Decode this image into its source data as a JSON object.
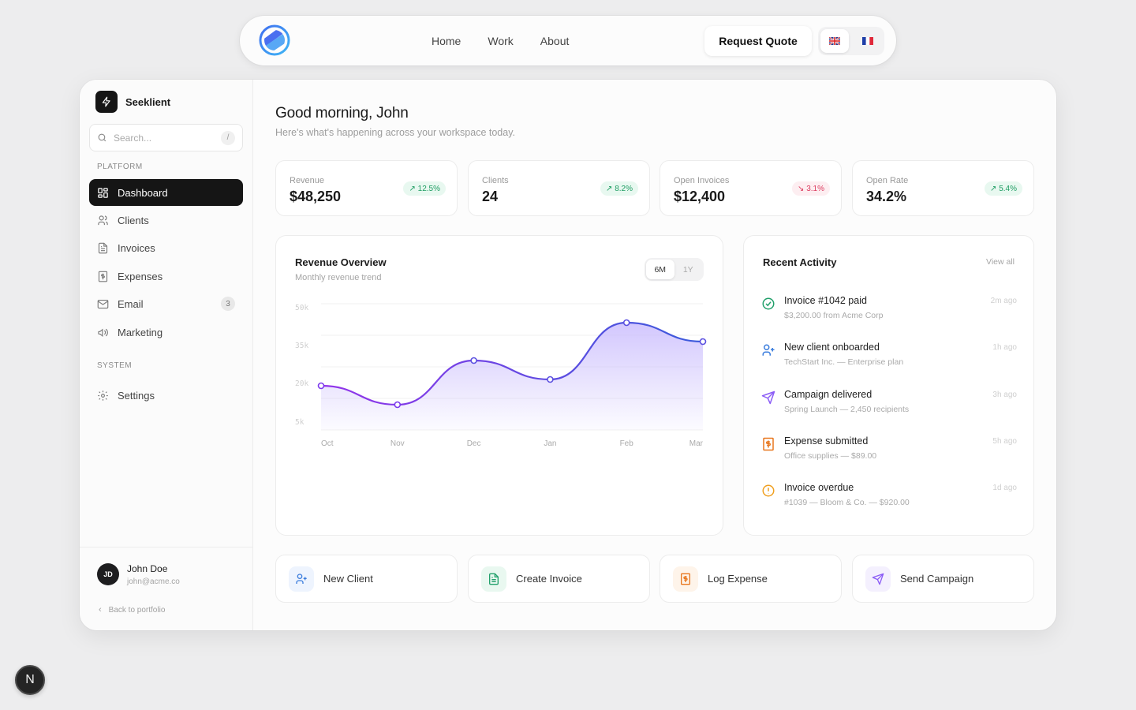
{
  "topnav": {
    "links": [
      "Home",
      "Work",
      "About"
    ],
    "cta_label": "Request Quote",
    "languages": [
      {
        "code": "en",
        "flag": "🇬🇧",
        "active": true
      },
      {
        "code": "fr",
        "flag": "🇫🇷",
        "active": false
      }
    ]
  },
  "sidebar": {
    "brand": "Seeklient",
    "search_placeholder": "Search...",
    "search_shortcut": "/",
    "sections": {
      "platform": "PLATFORM",
      "system": "SYSTEM"
    },
    "items": [
      {
        "label": "Dashboard",
        "icon": "dashboard-icon",
        "active": true
      },
      {
        "label": "Clients",
        "icon": "users-icon"
      },
      {
        "label": "Invoices",
        "icon": "file-text-icon"
      },
      {
        "label": "Expenses",
        "icon": "receipt-icon"
      },
      {
        "label": "Email",
        "icon": "mail-icon",
        "badge": "3"
      },
      {
        "label": "Marketing",
        "icon": "megaphone-icon"
      },
      {
        "label": "Settings",
        "icon": "settings-icon"
      }
    ],
    "user": {
      "initials": "JD",
      "name": "John Doe",
      "email": "john@acme.co"
    },
    "back_link": "Back to portfolio"
  },
  "main": {
    "greeting": "Good morning, John",
    "subtitle": "Here's what's happening across your workspace today.",
    "stats": [
      {
        "label": "Revenue",
        "value": "$48,250",
        "change": "12.5%",
        "direction": "up"
      },
      {
        "label": "Clients",
        "value": "24",
        "change": "8.2%",
        "direction": "up"
      },
      {
        "label": "Open Invoices",
        "value": "$12,400",
        "change": "3.1%",
        "direction": "down"
      },
      {
        "label": "Open Rate",
        "value": "34.2%",
        "change": "5.4%",
        "direction": "up"
      }
    ],
    "revenue_panel": {
      "title": "Revenue Overview",
      "subtitle": "Monthly revenue trend",
      "ranges": [
        "6M",
        "1Y"
      ],
      "active_range": "6M"
    },
    "activity_panel": {
      "title": "Recent Activity",
      "view_all": "View all",
      "items": [
        {
          "title": "Invoice #1042 paid",
          "sub": "$3,200.00 from Acme Corp",
          "time": "2m ago",
          "icon": "check-circle-icon",
          "color": "#22a06b"
        },
        {
          "title": "New client onboarded",
          "sub": "TechStart Inc. — Enterprise plan",
          "time": "1h ago",
          "icon": "user-plus-icon",
          "color": "#3b7ddd"
        },
        {
          "title": "Campaign delivered",
          "sub": "Spring Launch — 2,450 recipients",
          "time": "3h ago",
          "icon": "send-icon",
          "color": "#8b5cf6"
        },
        {
          "title": "Expense submitted",
          "sub": "Office supplies — $89.00",
          "time": "5h ago",
          "icon": "receipt-icon",
          "color": "#e8771e"
        },
        {
          "title": "Invoice overdue",
          "sub": "#1039 — Bloom & Co. — $920.00",
          "time": "1d ago",
          "icon": "alert-circle-icon",
          "color": "#f0a020"
        }
      ]
    },
    "quick_actions": [
      {
        "label": "New Client",
        "icon": "user-plus-icon",
        "color": "#3b7ddd",
        "bg": "#eef4fe"
      },
      {
        "label": "Create Invoice",
        "icon": "file-text-icon",
        "color": "#22a06b",
        "bg": "#e9f8f0"
      },
      {
        "label": "Log Expense",
        "icon": "receipt-icon",
        "color": "#e8771e",
        "bg": "#fef4ea"
      },
      {
        "label": "Send Campaign",
        "icon": "send-icon",
        "color": "#8b5cf6",
        "bg": "#f4f0fe"
      }
    ]
  },
  "chart_data": {
    "type": "area",
    "title": "Revenue Overview",
    "subtitle": "Monthly revenue trend",
    "categories": [
      "Oct",
      "Nov",
      "Dec",
      "Jan",
      "Feb",
      "Mar"
    ],
    "series": [
      {
        "name": "Revenue",
        "values": [
          20000,
          12500,
          30000,
          22500,
          45000,
          37500
        ]
      }
    ],
    "y_ticks": [
      "50k",
      "35k",
      "20k",
      "5k"
    ],
    "ylim": [
      5000,
      50000
    ],
    "grid": true,
    "legend": "none",
    "colors": {
      "line_start": "#9333ea",
      "line_end": "#3b5bdb",
      "fill": "#c4b5fd"
    }
  },
  "dev_badge": "N"
}
